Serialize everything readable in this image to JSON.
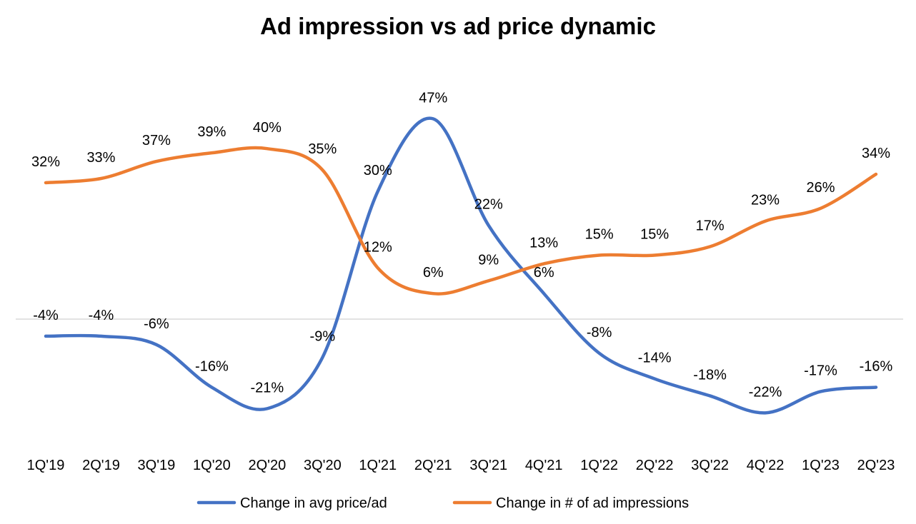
{
  "chart_data": {
    "type": "line",
    "title": "Ad impression vs ad price dynamic",
    "xlabel": "",
    "ylabel": "",
    "categories": [
      "1Q'19",
      "2Q'19",
      "3Q'19",
      "1Q'20",
      "2Q'20",
      "3Q'20",
      "1Q'21",
      "2Q'21",
      "3Q'21",
      "4Q'21",
      "1Q'22",
      "2Q'22",
      "3Q'22",
      "4Q'22",
      "1Q'23",
      "2Q'23"
    ],
    "ylim": [
      -25,
      50
    ],
    "grid": false,
    "legend": "bottom",
    "series": [
      {
        "name": "Change in avg price/ad",
        "color": "#4472C4",
        "values": [
          -4,
          -4,
          -6,
          -16,
          -21,
          -9,
          30,
          47,
          22,
          6,
          -8,
          -14,
          -18,
          -22,
          -17,
          -16
        ],
        "labels": [
          "-4%",
          "-4%",
          "-6%",
          "-16%",
          "-21%",
          "-9%",
          "30%",
          "47%",
          "22%",
          "6%",
          "-8%",
          "-14%",
          "-18%",
          "-22%",
          "-17%",
          "-16%"
        ]
      },
      {
        "name": "Change in # of ad impressions",
        "color": "#ED7D31",
        "values": [
          32,
          33,
          37,
          39,
          40,
          35,
          12,
          6,
          9,
          13,
          15,
          15,
          17,
          23,
          26,
          34
        ],
        "labels": [
          "32%",
          "33%",
          "37%",
          "39%",
          "40%",
          "35%",
          "12%",
          "6%",
          "9%",
          "13%",
          "15%",
          "15%",
          "17%",
          "23%",
          "26%",
          "34%"
        ]
      }
    ]
  }
}
